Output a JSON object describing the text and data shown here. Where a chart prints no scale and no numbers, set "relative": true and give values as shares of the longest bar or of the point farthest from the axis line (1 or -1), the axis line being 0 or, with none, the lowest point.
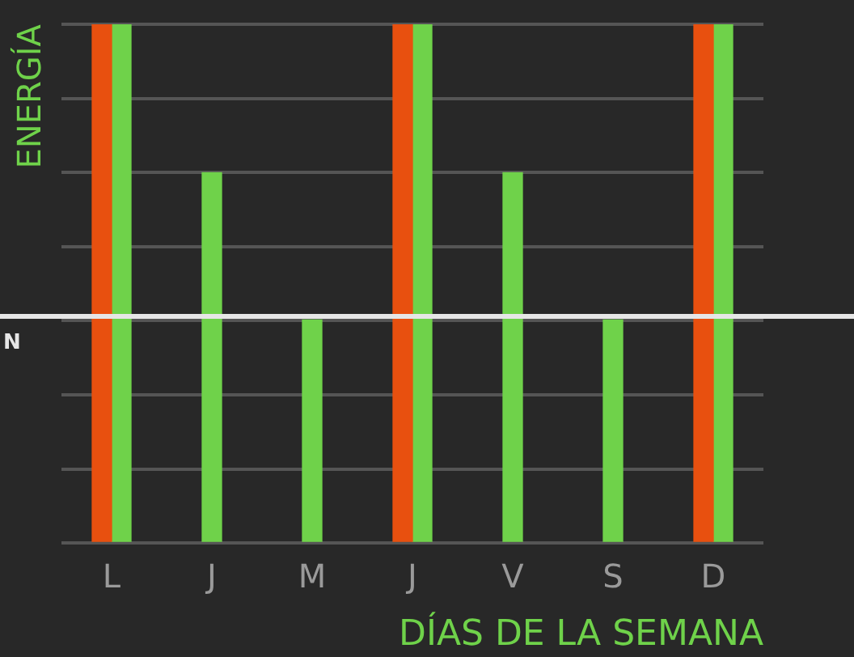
{
  "chart_data": {
    "type": "bar",
    "relative": true,
    "xlabel": "DÍAS DE LA SEMANA",
    "ylabel": "ENERGÍA",
    "categories": [
      "L",
      "J",
      "M",
      "J",
      "V",
      "S",
      "D"
    ],
    "series": [
      {
        "color": "#e8500f",
        "values": [
          1,
          null,
          null,
          1,
          null,
          null,
          1
        ]
      },
      {
        "color": "#6fd24a",
        "values": [
          1,
          0.714,
          0.43,
          1,
          0.714,
          0.43,
          1
        ]
      }
    ],
    "ref_lines": [
      {
        "axis": "y",
        "value": 0.437,
        "label": "N",
        "color": "#e6e6e6"
      }
    ],
    "grid": "y",
    "legend": false
  }
}
